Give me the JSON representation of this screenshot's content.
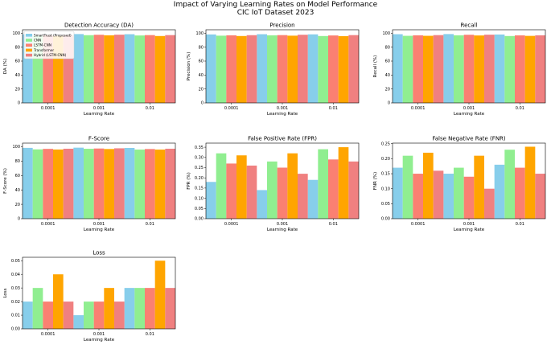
{
  "figure": {
    "title_line1": "Impact of Varying Learning Rates on Model Performance",
    "title_line2": "CIC IoT Dataset 2023"
  },
  "colors": {
    "SmartTrust (Proposed)": "#87ceeb",
    "CNN": "#90ee90",
    "LSTM-CNN": "#fa8072",
    "Transformer": "#ffa500",
    "Hybrid (LSTM-CNN)": "#f08080"
  },
  "chart_data": [
    {
      "type": "bar",
      "title": "Detection Accuracy (DA)",
      "xlabel": "Learning Rate",
      "ylabel": "DA (%)",
      "categories": [
        "0.0001",
        "0.001",
        "0.01"
      ],
      "ylim": [
        0,
        105
      ],
      "yticks": [
        0,
        20,
        40,
        60,
        80,
        100
      ],
      "legend": "top-left",
      "series": [
        {
          "name": "SmartTrust (Proposed)",
          "values": [
            98.5,
            98.8,
            98.6
          ]
        },
        {
          "name": "CNN",
          "values": [
            96.5,
            97.2,
            96.8
          ]
        },
        {
          "name": "LSTM-CNN",
          "values": [
            97.0,
            97.8,
            97.3
          ]
        },
        {
          "name": "Transformer",
          "values": [
            96.2,
            97.0,
            96.0
          ]
        },
        {
          "name": "Hybrid (LSTM-CNN)",
          "values": [
            97.3,
            97.9,
            97.3
          ]
        }
      ]
    },
    {
      "type": "bar",
      "title": "Precision",
      "xlabel": "Learning Rate",
      "ylabel": "Precision (%)",
      "categories": [
        "0.0001",
        "0.001",
        "0.01"
      ],
      "ylim": [
        0,
        105
      ],
      "yticks": [
        0,
        20,
        40,
        60,
        80,
        100
      ],
      "series": [
        {
          "name": "SmartTrust (Proposed)",
          "values": [
            98.3,
            98.6,
            98.4
          ]
        },
        {
          "name": "CNN",
          "values": [
            96.5,
            97.0,
            96.0
          ]
        },
        {
          "name": "LSTM-CNN",
          "values": [
            97.0,
            97.3,
            96.8
          ]
        },
        {
          "name": "Transformer",
          "values": [
            96.0,
            96.5,
            95.8
          ]
        },
        {
          "name": "Hybrid (LSTM-CNN)",
          "values": [
            97.2,
            97.8,
            97.3
          ]
        }
      ]
    },
    {
      "type": "bar",
      "title": "Recall",
      "xlabel": "Learning Rate",
      "ylabel": "Recall (%)",
      "categories": [
        "0.0001",
        "0.001",
        "0.01"
      ],
      "ylim": [
        0,
        105
      ],
      "yticks": [
        0,
        20,
        40,
        60,
        80,
        100
      ],
      "series": [
        {
          "name": "SmartTrust (Proposed)",
          "values": [
            98.6,
            98.8,
            98.2
          ]
        },
        {
          "name": "CNN",
          "values": [
            96.3,
            97.0,
            96.0
          ]
        },
        {
          "name": "LSTM-CNN",
          "values": [
            97.0,
            97.8,
            96.9
          ]
        },
        {
          "name": "Transformer",
          "values": [
            96.3,
            96.8,
            96.2
          ]
        },
        {
          "name": "Hybrid (LSTM-CNN)",
          "values": [
            97.3,
            97.9,
            97.0
          ]
        }
      ]
    },
    {
      "type": "bar",
      "title": "F-Score",
      "xlabel": "Learning Rate",
      "ylabel": "F-Score (%)",
      "categories": [
        "0.0001",
        "0.001",
        "0.01"
      ],
      "ylim": [
        0,
        105
      ],
      "yticks": [
        0,
        20,
        40,
        60,
        80,
        100
      ],
      "series": [
        {
          "name": "SmartTrust (Proposed)",
          "values": [
            98.4,
            98.7,
            98.3
          ]
        },
        {
          "name": "CNN",
          "values": [
            96.3,
            97.1,
            96.0
          ]
        },
        {
          "name": "LSTM-CNN",
          "values": [
            97.0,
            97.5,
            96.8
          ]
        },
        {
          "name": "Transformer",
          "values": [
            96.1,
            96.8,
            96.0
          ]
        },
        {
          "name": "Hybrid (LSTM-CNN)",
          "values": [
            97.2,
            97.8,
            97.2
          ]
        }
      ]
    },
    {
      "type": "bar",
      "title": "False Positive Rate (FPR)",
      "xlabel": "Learning Rate",
      "ylabel": "FPR (%)",
      "categories": [
        "0.0001",
        "0.001",
        "0.01"
      ],
      "ylim": [
        0,
        0.37
      ],
      "yticks": [
        0,
        0.05,
        0.1,
        0.15,
        0.2,
        0.25,
        0.3,
        0.35
      ],
      "series": [
        {
          "name": "SmartTrust (Proposed)",
          "values": [
            0.18,
            0.14,
            0.19
          ]
        },
        {
          "name": "CNN",
          "values": [
            0.32,
            0.28,
            0.34
          ]
        },
        {
          "name": "LSTM-CNN",
          "values": [
            0.27,
            0.25,
            0.29
          ]
        },
        {
          "name": "Transformer",
          "values": [
            0.31,
            0.32,
            0.35
          ]
        },
        {
          "name": "Hybrid (LSTM-CNN)",
          "values": [
            0.26,
            0.22,
            0.28
          ]
        }
      ]
    },
    {
      "type": "bar",
      "title": "False Negative Rate (FNR)",
      "xlabel": "Learning Rate",
      "ylabel": "FNR (%)",
      "categories": [
        "0.0001",
        "0.001",
        "0.01"
      ],
      "ylim": [
        0,
        0.252
      ],
      "yticks": [
        0,
        0.05,
        0.1,
        0.15,
        0.2,
        0.25
      ],
      "series": [
        {
          "name": "SmartTrust (Proposed)",
          "values": [
            0.17,
            0.15,
            0.18
          ]
        },
        {
          "name": "CNN",
          "values": [
            0.21,
            0.17,
            0.23
          ]
        },
        {
          "name": "LSTM-CNN",
          "values": [
            0.15,
            0.14,
            0.17
          ]
        },
        {
          "name": "Transformer",
          "values": [
            0.22,
            0.21,
            0.24
          ]
        },
        {
          "name": "Hybrid (LSTM-CNN)",
          "values": [
            0.16,
            0.1,
            0.15
          ]
        }
      ]
    },
    {
      "type": "bar",
      "title": "Loss",
      "xlabel": "Learning Rate",
      "ylabel": "Loss",
      "categories": [
        "0.0001",
        "0.001",
        "0.01"
      ],
      "ylim": [
        0,
        0.0525
      ],
      "yticks": [
        0,
        0.01,
        0.02,
        0.03,
        0.04,
        0.05
      ],
      "series": [
        {
          "name": "SmartTrust (Proposed)",
          "values": [
            0.02,
            0.01,
            0.03
          ]
        },
        {
          "name": "CNN",
          "values": [
            0.03,
            0.02,
            0.03
          ]
        },
        {
          "name": "LSTM-CNN",
          "values": [
            0.02,
            0.02,
            0.03
          ]
        },
        {
          "name": "Transformer",
          "values": [
            0.04,
            0.03,
            0.05
          ]
        },
        {
          "name": "Hybrid (LSTM-CNN)",
          "values": [
            0.02,
            0.02,
            0.03
          ]
        }
      ]
    }
  ]
}
